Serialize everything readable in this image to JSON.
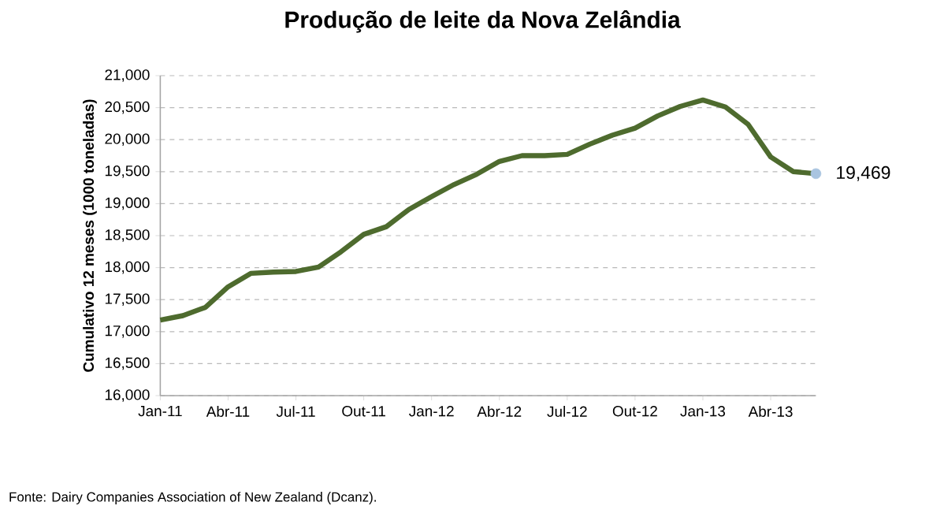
{
  "chart_data": {
    "type": "line",
    "title": "Produção de leite da Nova Zelândia",
    "ylabel": "Cumulativo 12 meses (1000 toneladas)",
    "categories": [
      "Jan-11",
      null,
      null,
      "Abr-11",
      null,
      null,
      "Jul-11",
      null,
      null,
      "Out-11",
      null,
      null,
      "Jan-12",
      null,
      null,
      "Abr-12",
      null,
      null,
      "Jul-12",
      null,
      null,
      "Out-12",
      null,
      null,
      "Jan-13",
      null,
      null,
      "Abr-13",
      null,
      null
    ],
    "series": [
      {
        "color": "#4e6b2e",
        "values": [
          17180,
          17250,
          17380,
          17700,
          17910,
          17930,
          17940,
          18010,
          18250,
          18520,
          18640,
          18910,
          19110,
          19300,
          19460,
          19660,
          19750,
          19750,
          19770,
          19930,
          20070,
          20180,
          20370,
          20520,
          20620,
          20510,
          20240,
          19730,
          19500,
          19469
        ],
        "value_labels": [
          null,
          null,
          null,
          null,
          null,
          null,
          null,
          null,
          null,
          null,
          null,
          null,
          null,
          null,
          null,
          null,
          null,
          null,
          null,
          null,
          null,
          null,
          null,
          null,
          null,
          null,
          null,
          null,
          null,
          "19,469"
        ]
      }
    ],
    "ylim": [
      16000,
      21000
    ],
    "yticks": [
      {
        "value": 16000,
        "label": "16,000"
      },
      {
        "value": 16500,
        "label": "16,500"
      },
      {
        "value": 17000,
        "label": "17,000"
      },
      {
        "value": 17500,
        "label": "17,500"
      },
      {
        "value": 18000,
        "label": "18,000"
      },
      {
        "value": 18500,
        "label": "18,500"
      },
      {
        "value": 19000,
        "label": "19,000"
      },
      {
        "value": 19500,
        "label": "19,500"
      },
      {
        "value": 20000,
        "label": "20,000"
      },
      {
        "value": 20500,
        "label": "20,500"
      },
      {
        "value": 21000,
        "label": "21,000"
      }
    ],
    "grid": "y",
    "line_style": "solid",
    "annotations": [
      "Fonte: Dairy Companies Association of New Zealand (Dcanz)."
    ]
  }
}
